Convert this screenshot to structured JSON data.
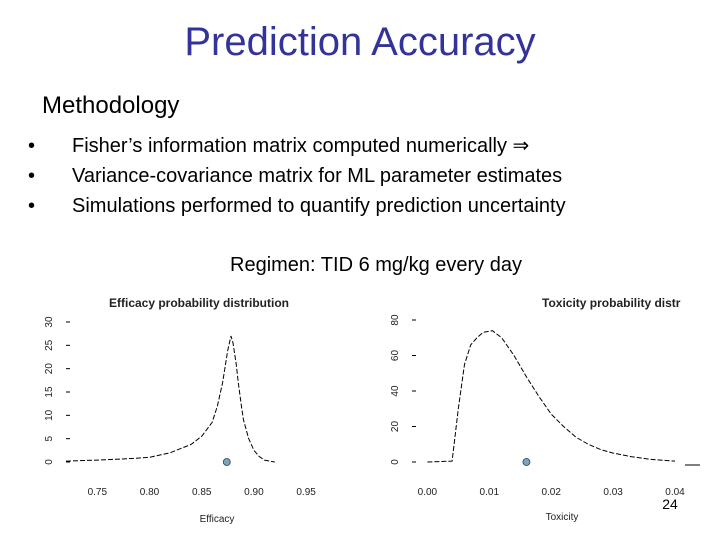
{
  "slide": {
    "title": "Prediction Accuracy",
    "subtitle": "Methodology",
    "bullet_marker": "•",
    "bullets": [
      "Fisher’s information matrix computed numerically ⇒",
      "Variance-covariance matrix for ML parameter estimates",
      "Simulations performed to quantify prediction uncertainty"
    ],
    "regimen": "Regimen: TID 6 mg/kg every day",
    "page_number": "24"
  },
  "colors": {
    "title": "#333399",
    "curve": "#000000",
    "marker": "#7aa7b8"
  },
  "chart_data": [
    {
      "type": "line",
      "title": "Efficacy probability distribution",
      "xlabel": "Efficacy",
      "ylabel": "",
      "xlim": [
        0.72,
        0.97
      ],
      "ylim": [
        0,
        30
      ],
      "x_ticks": [
        "0.75",
        "0.80",
        "0.85",
        "0.90",
        "0.95"
      ],
      "y_ticks": [
        "0",
        "5",
        "10",
        "15",
        "20",
        "25",
        "30"
      ],
      "series": [
        {
          "x": [
            0.72,
            0.75,
            0.78,
            0.8,
            0.82,
            0.84,
            0.85,
            0.86,
            0.865,
            0.87,
            0.875,
            0.878,
            0.88,
            0.883,
            0.885,
            0.888,
            0.89,
            0.895,
            0.9,
            0.905,
            0.91,
            0.92
          ],
          "y": [
            0.2,
            0.4,
            0.7,
            1.0,
            2.0,
            3.8,
            5.5,
            8.5,
            12.0,
            17.0,
            24.0,
            27.0,
            25.5,
            21.0,
            17.0,
            12.0,
            9.0,
            5.0,
            2.5,
            1.2,
            0.4,
            0.0
          ]
        }
      ],
      "point_marker": {
        "x": 0.874,
        "y": 0
      },
      "grid": false
    },
    {
      "type": "line",
      "title": "Toxicity probability distr",
      "xlabel": "Toxicity",
      "ylabel": "",
      "xlim": [
        -0.002,
        0.04
      ],
      "ylim": [
        0,
        80
      ],
      "x_ticks": [
        "0.00",
        "0.01",
        "0.02",
        "0.03",
        "0.04"
      ],
      "y_ticks": [
        "0",
        "20",
        "40",
        "60",
        "80"
      ],
      "series": [
        {
          "x": [
            0.0,
            0.004,
            0.005,
            0.006,
            0.007,
            0.008,
            0.009,
            0.0105,
            0.012,
            0.014,
            0.016,
            0.018,
            0.02,
            0.022,
            0.024,
            0.026,
            0.028,
            0.03,
            0.033,
            0.036,
            0.04
          ],
          "y": [
            0.0,
            0.5,
            30.0,
            55.0,
            66.0,
            70.0,
            73.0,
            74.0,
            70.0,
            60.0,
            48.0,
            37.0,
            27.0,
            20.0,
            14.0,
            10.0,
            7.0,
            5.0,
            3.0,
            1.5,
            0.5
          ]
        }
      ],
      "point_marker": {
        "x": 0.016,
        "y": 0
      },
      "grid": false
    }
  ]
}
